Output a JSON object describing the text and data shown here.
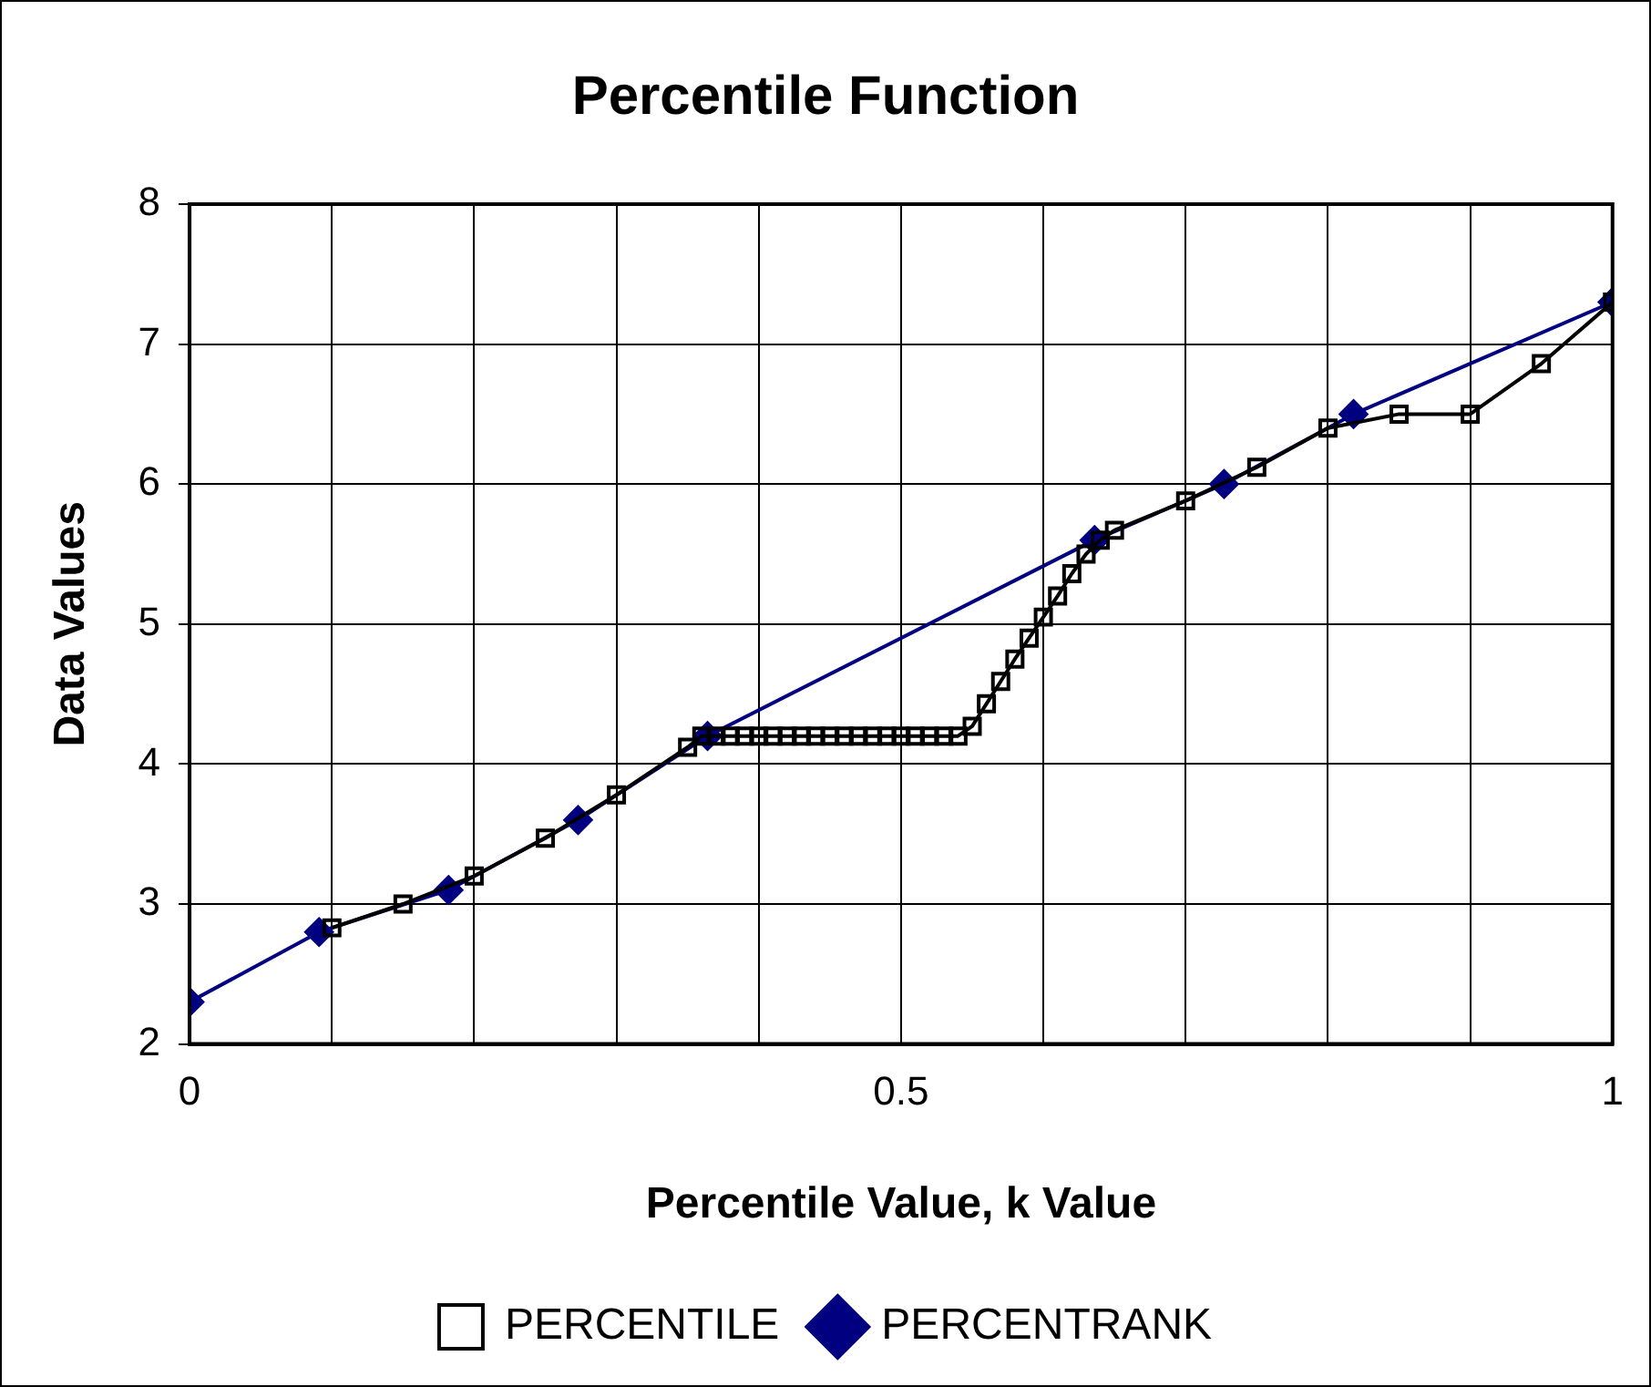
{
  "chart_data": {
    "type": "line",
    "title": "Percentile Function",
    "xlabel": "Percentile Value, k Value",
    "ylabel": "Data Values",
    "xlim": [
      0,
      1
    ],
    "xticks": [
      0,
      {
        "value": 0.1,
        "label": null
      },
      {
        "value": 0.2,
        "label": null
      },
      {
        "value": 0.3,
        "label": null
      },
      {
        "value": 0.4,
        "label": null
      },
      0.5,
      {
        "value": 0.6,
        "label": null
      },
      {
        "value": 0.7,
        "label": null
      },
      {
        "value": 0.8,
        "label": null
      },
      {
        "value": 0.9,
        "label": null
      },
      1
    ],
    "ylim": [
      2,
      8
    ],
    "yticks": [
      2,
      3,
      4,
      5,
      6,
      7,
      8
    ],
    "grid": true,
    "legend": "bottom",
    "series": [
      {
        "name": "PERCENTRANK",
        "color": "#000080",
        "marker": "diamond",
        "x": [
          0,
          0.091,
          0.182,
          0.273,
          0.364,
          0.636,
          0.727,
          0.818,
          1
        ],
        "values": [
          2.3,
          2.8,
          3.1,
          3.6,
          4.2,
          5.6,
          6.0,
          6.5,
          7.3
        ]
      },
      {
        "name": "PERCENTILE",
        "color": "#000000",
        "marker": "square",
        "x": [
          0.1,
          0.15,
          0.2,
          0.25,
          0.3,
          0.35,
          0.36,
          0.37,
          0.38,
          0.39,
          0.4,
          0.41,
          0.42,
          0.43,
          0.44,
          0.45,
          0.46,
          0.47,
          0.48,
          0.49,
          0.5,
          0.51,
          0.52,
          0.53,
          0.54,
          0.55,
          0.56,
          0.57,
          0.58,
          0.59,
          0.6,
          0.61,
          0.62,
          0.63,
          0.64,
          0.65,
          0.7,
          0.75,
          0.8,
          0.85,
          0.9,
          0.95,
          1
        ],
        "values": [
          2.83,
          3.0,
          3.2,
          3.47,
          3.78,
          4.12,
          4.2,
          4.2,
          4.2,
          4.2,
          4.2,
          4.2,
          4.2,
          4.2,
          4.2,
          4.2,
          4.2,
          4.2,
          4.2,
          4.2,
          4.2,
          4.2,
          4.2,
          4.2,
          4.2,
          4.27,
          4.43,
          4.59,
          4.75,
          4.9,
          5.05,
          5.2,
          5.36,
          5.5,
          5.6,
          5.67,
          5.88,
          6.12,
          6.4,
          6.5,
          6.5,
          6.86,
          7.3
        ]
      }
    ]
  }
}
